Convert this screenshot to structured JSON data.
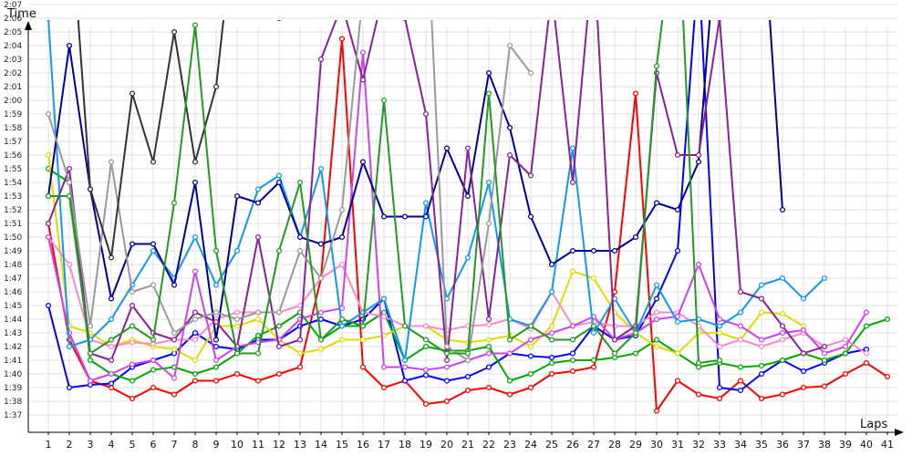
{
  "chart_data": {
    "type": "line",
    "ylabel": "Time",
    "xlabel": "Laps",
    "x": [
      1,
      2,
      3,
      4,
      5,
      6,
      7,
      8,
      9,
      10,
      11,
      12,
      13,
      14,
      15,
      16,
      17,
      18,
      19,
      20,
      21,
      22,
      23,
      24,
      25,
      26,
      27,
      28,
      29,
      30,
      31,
      32,
      33,
      34,
      35,
      36,
      37,
      38,
      39,
      40,
      41
    ],
    "y_ticks": [
      "1:37",
      "1:38",
      "1:39",
      "1:40",
      "1:41",
      "1:42",
      "1:43",
      "1:44",
      "1:45",
      "1:46",
      "1:47",
      "1:48",
      "1:49",
      "1:50",
      "1:51",
      "1:52",
      "1:53",
      "1:54",
      "1:55",
      "1:56",
      "1:57",
      "1:58",
      "1:59",
      "2:00",
      "2:01",
      "2:02",
      "2:03",
      "2:04",
      "2:05",
      "2:06",
      "2:07"
    ],
    "ylim_seconds": [
      96,
      129
    ],
    "grid": true,
    "series": [
      {
        "color": "#ff0000",
        "values": [
          111,
          102.5,
          99.5,
          99,
          98.2,
          99,
          98.5,
          99.5,
          99.5,
          100,
          99.5,
          100,
          100.5,
          107,
          124.5,
          100.5,
          99,
          99.5,
          97.8,
          98,
          98.8,
          99,
          98.5,
          99,
          100,
          100.2,
          100.5,
          106,
          120.5,
          97.3,
          99.5,
          98.5,
          98.2,
          99.5,
          98.2,
          98.5,
          99,
          99.1,
          100,
          100.8,
          99.8
        ]
      },
      {
        "color": "#0000ff",
        "values": [
          105,
          99,
          99.2,
          99.3,
          100.5,
          101,
          101.5,
          103,
          102,
          101.8,
          102.5,
          102.5,
          103.5,
          104,
          103.5,
          104,
          105.5,
          99.5,
          99.9,
          99.5,
          99.8,
          100.5,
          101.5,
          101.3,
          101.2,
          101.5,
          103.5,
          102.5,
          102.8,
          105.5,
          109,
          130,
          99,
          98.8,
          100,
          101,
          100.2,
          100.8,
          101.5,
          101.8,
          null
        ]
      },
      {
        "color": "#00aa00",
        "values": [
          115,
          114,
          101,
          100,
          99.5,
          100.3,
          100.5,
          100,
          100.5,
          101.5,
          102.8,
          103.5,
          104.5,
          102.5,
          103.5,
          103.5,
          104.5,
          101,
          102,
          101.7,
          101.7,
          102,
          99.5,
          100,
          100.8,
          101,
          101,
          101.2,
          101.5,
          102.5,
          101.5,
          100.5,
          100.8,
          100.5,
          100.6,
          101,
          101.5,
          101,
          101.5,
          103.5,
          104
        ]
      },
      {
        "color": "#dddd00",
        "values": [
          116,
          103.5,
          103,
          102,
          102.5,
          102,
          101.8,
          101,
          103.5,
          103.5,
          104,
          102.5,
          101.5,
          101.8,
          102.5,
          102.5,
          102.8,
          103.5,
          103.5,
          102.5,
          102.3,
          102.5,
          102.8,
          102,
          103.5,
          107.5,
          107,
          104.5,
          103,
          102,
          101.5,
          103,
          103,
          102.5,
          104.5,
          104.4,
          103.5,
          null,
          null,
          null,
          null
        ]
      },
      {
        "color": "#ff88cc",
        "values": [
          110,
          108,
          102.5,
          102,
          102.3,
          102.2,
          102.5,
          102.5,
          104,
          104.5,
          104.5,
          104.5,
          105,
          107,
          108,
          104.5,
          104.2,
          103.5,
          103.5,
          103.2,
          103.5,
          103.6,
          104,
          103.3,
          106,
          103.5,
          103.8,
          103.5,
          103.5,
          104.5,
          104.5,
          103.5,
          102,
          102.5,
          102,
          102.5,
          103,
          102,
          102.5,
          101.5,
          null
        ]
      },
      {
        "color": "#cc44ee",
        "values": [
          110,
          103,
          99.5,
          100,
          100.7,
          101,
          99.7,
          107.5,
          101,
          102,
          102.3,
          102.5,
          104,
          104.5,
          104.8,
          123.5,
          100.5,
          100.5,
          100.3,
          100.5,
          101,
          101.5,
          101.5,
          102.5,
          103,
          103.5,
          104.2,
          102.5,
          103,
          104,
          104.2,
          108,
          104,
          103.5,
          102.5,
          103,
          103.2,
          101.5,
          102,
          104.5,
          null
        ]
      },
      {
        "color": "#1199ee",
        "values": [
          126,
          102,
          102.5,
          104,
          106.5,
          109,
          107,
          110,
          106.5,
          109,
          113.5,
          114.5,
          110,
          115,
          103.5,
          104.5,
          105.5,
          101,
          112.5,
          105.5,
          108.5,
          114,
          104,
          103.5,
          106,
          116.5,
          103,
          105.5,
          103,
          106.5,
          103.8,
          104,
          103.5,
          104.5,
          106.5,
          107,
          105.5,
          107,
          null,
          null,
          null
        ]
      },
      {
        "color": "#000099",
        "values": [
          113,
          124,
          113.5,
          105.5,
          109.5,
          109.5,
          106.5,
          114,
          102.5,
          113,
          112.5,
          114,
          110,
          109.5,
          110,
          115.5,
          111.5,
          111.5,
          111.5,
          116.5,
          113,
          122,
          118,
          111.5,
          108,
          109,
          109,
          109,
          110,
          112.5,
          112,
          115.5,
          135,
          135,
          135,
          112,
          null,
          null,
          null,
          null,
          null
        ]
      },
      {
        "color": "#882299",
        "values": [
          111,
          115,
          101.5,
          101,
          105,
          103,
          102.5,
          104.5,
          103.8,
          102,
          110,
          102,
          102.5,
          123,
          127,
          121.5,
          128,
          126,
          119,
          101,
          116.5,
          104,
          116,
          114.5,
          128,
          114,
          131,
          102.5,
          103.5,
          122,
          116,
          116,
          126,
          106,
          105.5,
          103.5,
          101.5,
          102,
          null,
          null,
          null
        ]
      },
      {
        "color": "#999999",
        "values": [
          119,
          114,
          103.5,
          115.5,
          106,
          106.5,
          103,
          104,
          104.5,
          104,
          104.5,
          104.5,
          109,
          107,
          112,
          128,
          131,
          135,
          135,
          102,
          101,
          111,
          124,
          122,
          null,
          null,
          null,
          null,
          null,
          null,
          null,
          null,
          null,
          null,
          null,
          null,
          null,
          null,
          null,
          null,
          null
        ]
      },
      {
        "color": "#333333",
        "values": [
          135,
          135,
          113.5,
          108.5,
          120.5,
          115.5,
          125,
          115.5,
          121,
          135,
          135,
          126,
          130,
          null,
          null,
          null,
          null,
          null,
          null,
          null,
          null,
          null,
          null,
          null,
          null,
          null,
          null,
          null,
          null,
          null,
          null,
          null,
          null,
          null,
          null,
          null,
          null,
          null,
          null,
          null,
          null
        ]
      },
      {
        "color": "#229922",
        "values": [
          113,
          113,
          101.5,
          102.5,
          103.5,
          102.5,
          112.5,
          125.5,
          109,
          101.5,
          101.5,
          109,
          114,
          102.5,
          104,
          103.5,
          120,
          103.5,
          102.5,
          101.5,
          101.5,
          120.5,
          102.5,
          103.5,
          102.5,
          102.5,
          103.5,
          101.5,
          103,
          122.5,
          135,
          100.8,
          101,
          null,
          null,
          null,
          null,
          null,
          null,
          null,
          null
        ]
      }
    ]
  }
}
